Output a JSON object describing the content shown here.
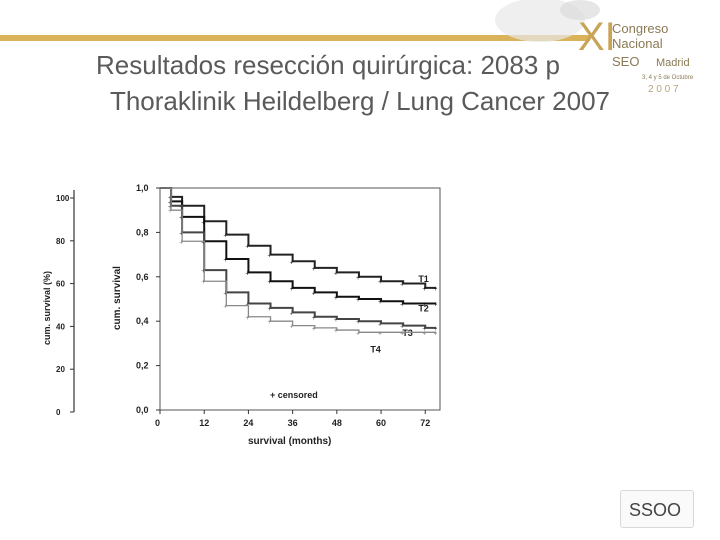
{
  "slide": {
    "title_line1": "Resultados resección quirúrgica: 2083 p",
    "title_line2": "Thoraklinik Heildelberg / Lung Cancer 2007",
    "accent_color": "#d9b25a",
    "title_color": "#5a5a5a"
  },
  "logo": {
    "numeral": "XI",
    "line1": "Congreso",
    "line2": "Nacional",
    "line3": "Madrid",
    "dates": "3, 4 y 5 de Octubre",
    "year": "2 0 0 7",
    "org": "SEO"
  },
  "footer_logo": {
    "text": "SSOO"
  },
  "chart_data": {
    "type": "line",
    "xlabel": "survival (months)",
    "ylabel": "cum. survival",
    "ylabel_outer": "cum. survival (%)",
    "x_ticks": [
      "0",
      "12",
      "24",
      "36",
      "48",
      "60",
      "72"
    ],
    "y_ticks": [
      "0,0",
      "0,2",
      "0,4",
      "0,6",
      "0,8",
      "1,0"
    ],
    "y_ticks_outer": [
      "0",
      "20",
      "40",
      "60",
      "80",
      "100"
    ],
    "xlim": [
      0,
      76
    ],
    "ylim": [
      0,
      1.0
    ],
    "grid": false,
    "legend_text": "+ censored",
    "series": [
      {
        "name": "T1",
        "x": [
          0,
          3,
          6,
          12,
          18,
          24,
          30,
          36,
          42,
          48,
          54,
          60,
          66,
          72,
          75
        ],
        "y": [
          1.0,
          0.96,
          0.92,
          0.85,
          0.79,
          0.74,
          0.7,
          0.67,
          0.64,
          0.62,
          0.6,
          0.58,
          0.57,
          0.55,
          0.55
        ]
      },
      {
        "name": "T2",
        "x": [
          0,
          3,
          6,
          12,
          18,
          24,
          30,
          36,
          42,
          48,
          54,
          60,
          66,
          72,
          75
        ],
        "y": [
          1.0,
          0.94,
          0.87,
          0.76,
          0.68,
          0.62,
          0.58,
          0.55,
          0.53,
          0.51,
          0.5,
          0.49,
          0.48,
          0.48,
          0.48
        ]
      },
      {
        "name": "T3",
        "x": [
          0,
          3,
          6,
          12,
          18,
          24,
          30,
          36,
          42,
          48,
          54,
          60,
          66,
          72,
          75
        ],
        "y": [
          1.0,
          0.92,
          0.8,
          0.63,
          0.53,
          0.48,
          0.46,
          0.44,
          0.42,
          0.41,
          0.4,
          0.39,
          0.38,
          0.37,
          0.37
        ]
      },
      {
        "name": "T4",
        "x": [
          0,
          3,
          6,
          12,
          18,
          24,
          30,
          36,
          42,
          48,
          54,
          60,
          66,
          72,
          75
        ],
        "y": [
          1.0,
          0.9,
          0.76,
          0.58,
          0.47,
          0.42,
          0.4,
          0.38,
          0.37,
          0.36,
          0.35,
          0.35,
          0.35,
          0.35,
          0.35
        ]
      }
    ]
  }
}
